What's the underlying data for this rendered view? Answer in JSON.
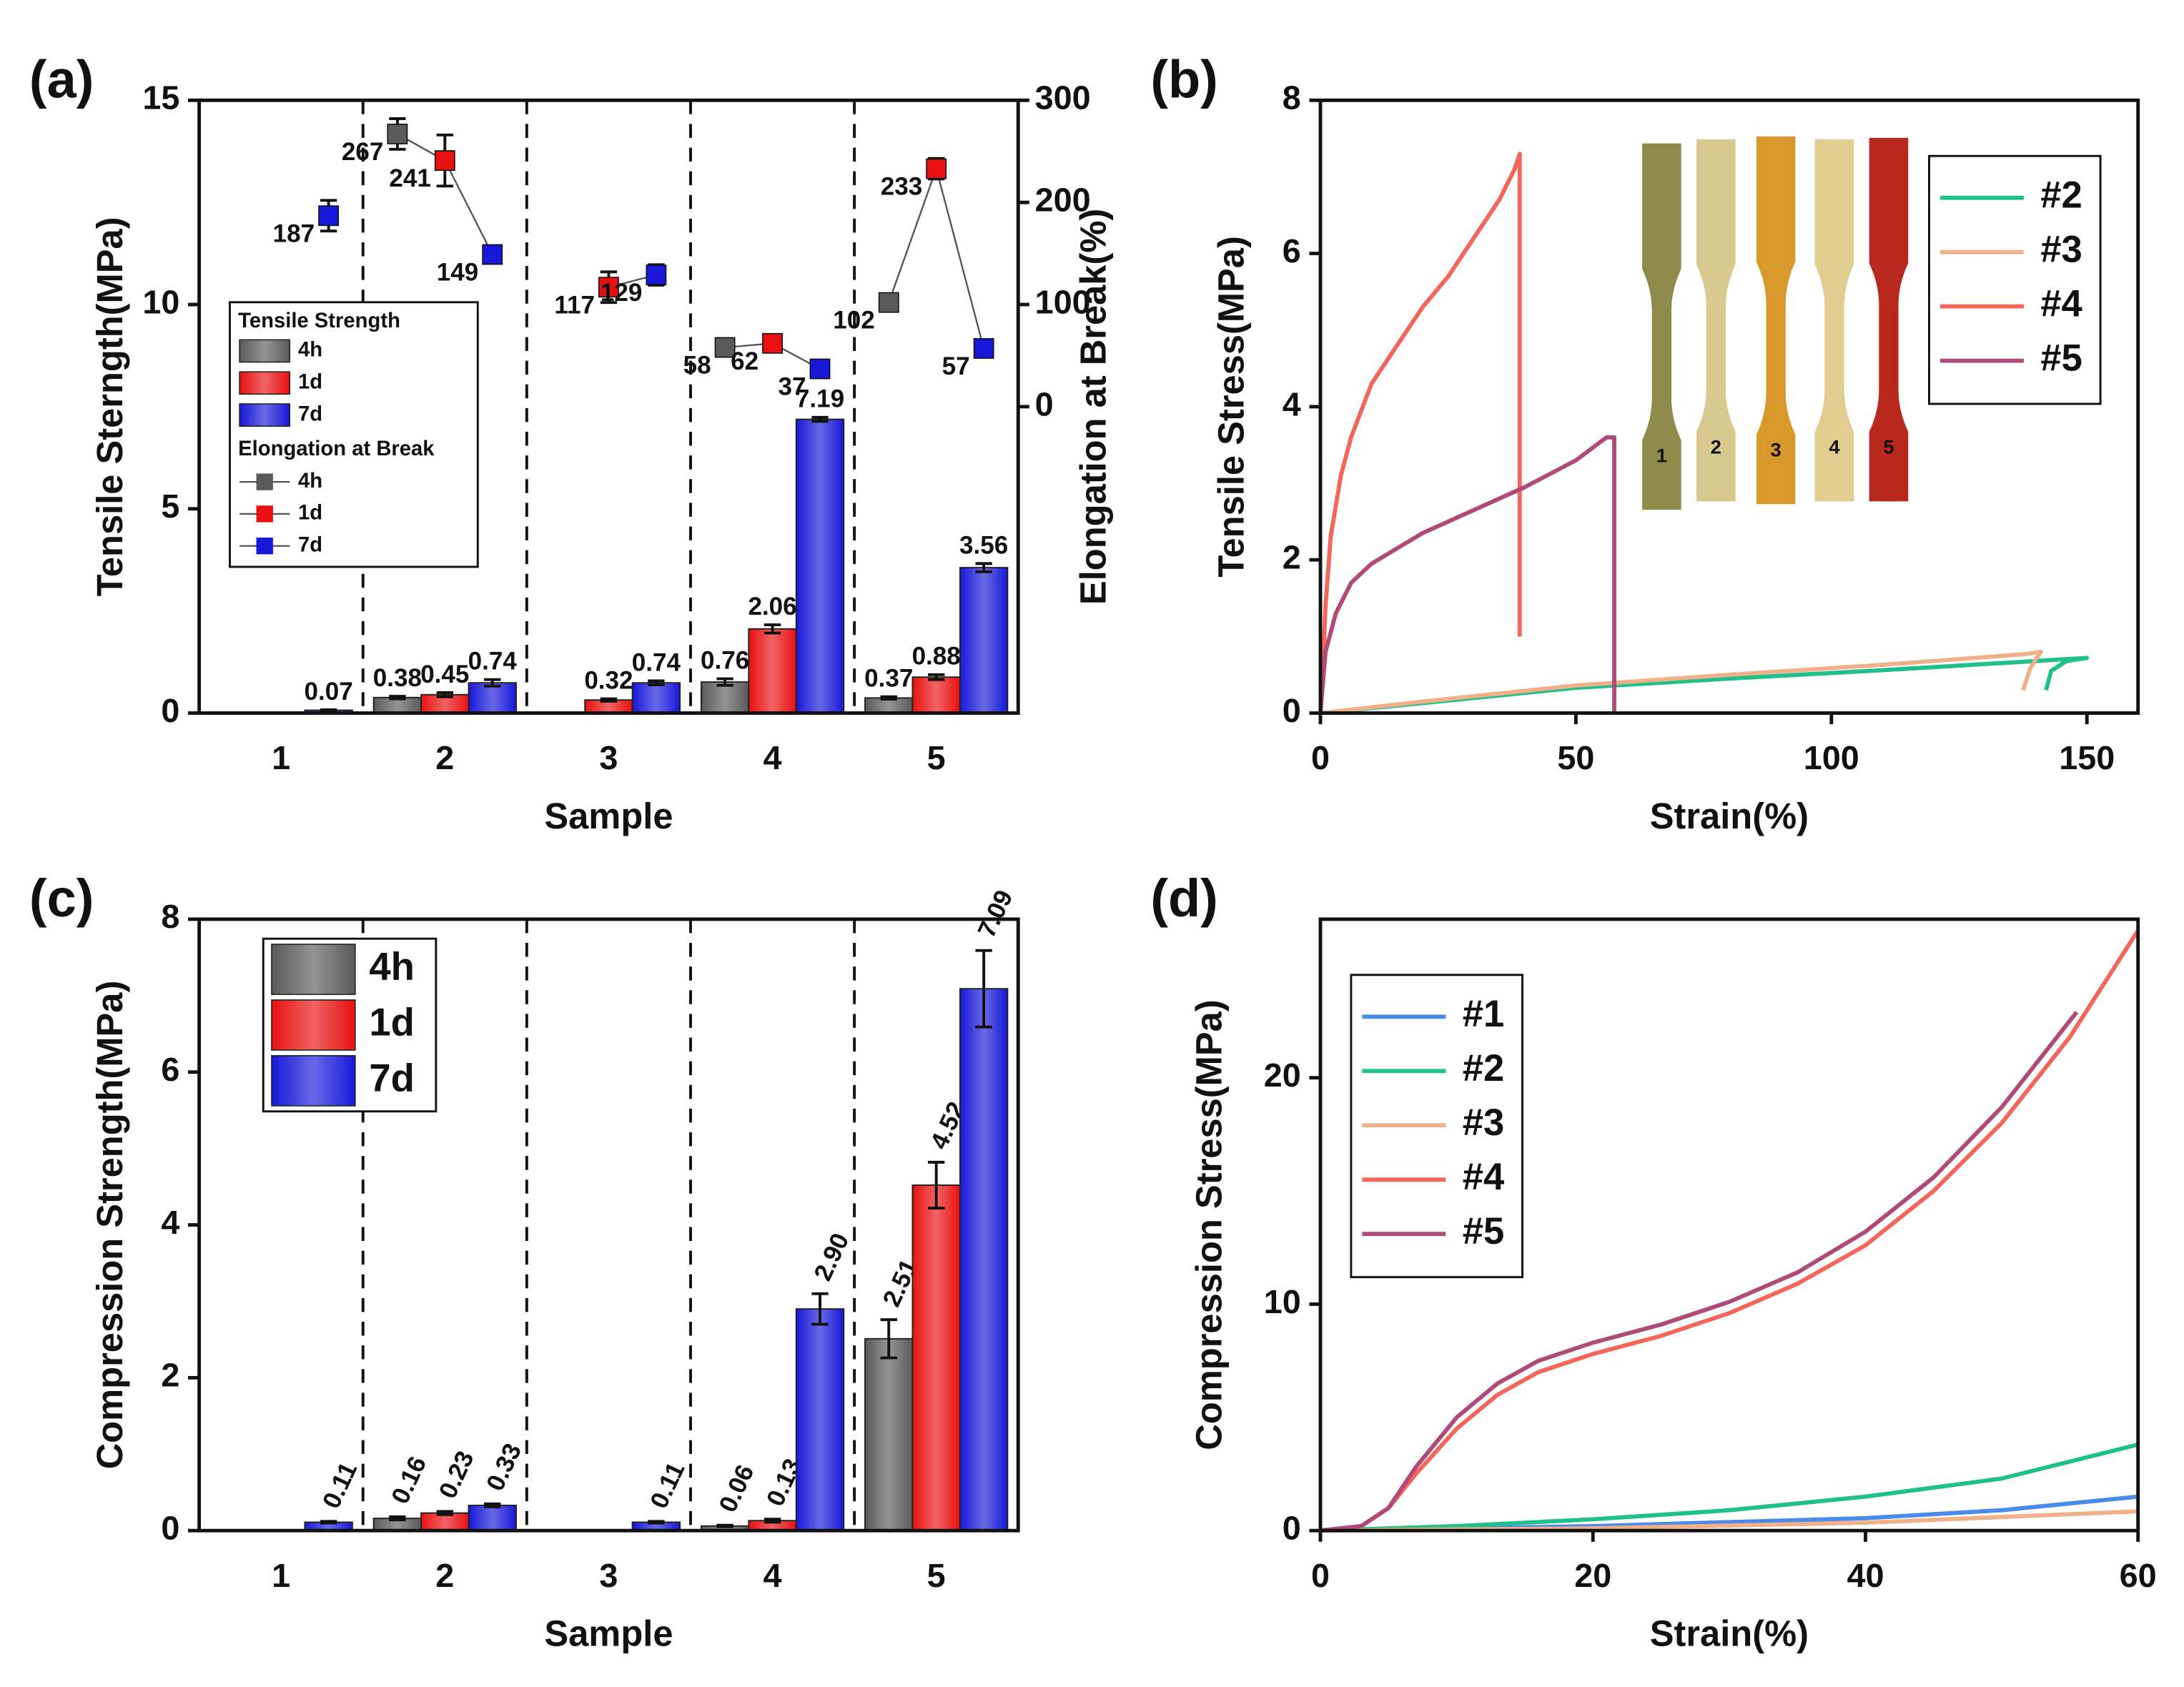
{
  "chart_data": [
    {
      "type": "bar",
      "label": "(a)",
      "xlabel": "Sample",
      "ylabel": "Tensile Sterngth(MPa)",
      "y2label": "Elongation at Break(%)",
      "categories": [
        "1",
        "2",
        "3",
        "4",
        "5"
      ],
      "ylim": [
        0,
        15
      ],
      "yticks": [
        0,
        5,
        10,
        15
      ],
      "y2lim": [
        -300,
        300
      ],
      "y2ticks": [
        0,
        100,
        200,
        300
      ],
      "legend": "center left",
      "bar_legend_title": "Tensile Strength",
      "point_legend_title": "Elongation at Break",
      "series": [
        {
          "name": "4h",
          "color": "#5a5a5a",
          "values": [
            null,
            0.38,
            null,
            0.76,
            0.37
          ],
          "errors": [
            null,
            0.03,
            null,
            0.08,
            0.03
          ]
        },
        {
          "name": "1d",
          "color": "#e81010",
          "values": [
            null,
            0.45,
            0.32,
            2.06,
            0.88
          ],
          "errors": [
            null,
            0.05,
            0.03,
            0.1,
            0.06
          ]
        },
        {
          "name": "7d",
          "color": "#1818d8",
          "values": [
            0.07,
            0.74,
            0.74,
            7.19,
            3.56
          ],
          "errors": [
            0.01,
            0.08,
            0.05,
            0.05,
            0.1
          ]
        },
        {
          "name": "4h",
          "color": "#5a5a5a",
          "axis": "y2",
          "values": [
            null,
            267,
            null,
            58,
            102
          ],
          "errors": [
            null,
            15,
            null,
            5,
            5
          ]
        },
        {
          "name": "1d",
          "color": "#e81010",
          "axis": "y2",
          "values": [
            null,
            241,
            117,
            62,
            233
          ],
          "errors": [
            null,
            25,
            15,
            5,
            10
          ]
        },
        {
          "name": "7d",
          "color": "#1818d8",
          "axis": "y2",
          "values": [
            187,
            149,
            129,
            37,
            57
          ],
          "errors": [
            15,
            5,
            10,
            3,
            3
          ]
        }
      ]
    },
    {
      "type": "line",
      "label": "(b)",
      "xlabel": "Strain(%)",
      "ylabel": "Tensile Stress(MPa)",
      "xlim": [
        0,
        160
      ],
      "xticks": [
        0,
        50,
        100,
        150
      ],
      "ylim": [
        0,
        8
      ],
      "yticks": [
        0,
        2,
        4,
        6,
        8
      ],
      "legend": "upper right",
      "inset_labels": [
        "1",
        "2",
        "3",
        "4",
        "5"
      ],
      "series": [
        {
          "name": "#2",
          "color": "#1fc08a",
          "x": [
            0,
            20,
            50,
            80,
            110,
            140,
            150,
            146,
            143,
            142
          ],
          "values": [
            0,
            0.13,
            0.33,
            0.45,
            0.56,
            0.68,
            0.72,
            0.68,
            0.55,
            0.3
          ]
        },
        {
          "name": "#3",
          "color": "#f0b08a",
          "x": [
            0,
            20,
            50,
            80,
            110,
            138,
            141,
            139,
            137.5
          ],
          "values": [
            0,
            0.15,
            0.36,
            0.5,
            0.63,
            0.77,
            0.8,
            0.6,
            0.3
          ]
        },
        {
          "name": "#4",
          "color": "#f4665a",
          "x": [
            0,
            0.5,
            1,
            2,
            4,
            6,
            10,
            15,
            20,
            25,
            30,
            35,
            38,
            39,
            39
          ],
          "values": [
            0,
            0.6,
            1.4,
            2.3,
            3.1,
            3.6,
            4.3,
            4.8,
            5.3,
            5.7,
            6.2,
            6.7,
            7.1,
            7.3,
            1.0
          ]
        },
        {
          "name": "#5",
          "color": "#b04a78",
          "x": [
            0,
            1,
            3,
            6,
            10,
            15,
            20,
            30,
            40,
            50,
            56,
            57.5,
            57.5
          ],
          "values": [
            0,
            0.8,
            1.3,
            1.7,
            1.95,
            2.15,
            2.35,
            2.65,
            2.95,
            3.3,
            3.6,
            3.6,
            0
          ]
        }
      ]
    },
    {
      "type": "bar",
      "label": "(c)",
      "xlabel": "Sample",
      "ylabel": "Compression Strength(MPa)",
      "categories": [
        "1",
        "2",
        "3",
        "4",
        "5"
      ],
      "ylim": [
        0,
        8
      ],
      "yticks": [
        0,
        2,
        4,
        6,
        8
      ],
      "legend": "upper left",
      "series": [
        {
          "name": "4h",
          "color": "#5a5a5a",
          "values": [
            null,
            0.16,
            null,
            0.06,
            2.51
          ],
          "errors": [
            null,
            0.02,
            null,
            0.01,
            0.25
          ]
        },
        {
          "name": "1d",
          "color": "#e81010",
          "values": [
            null,
            0.23,
            null,
            0.13,
            4.52
          ],
          "errors": [
            null,
            0.02,
            null,
            0.02,
            0.3
          ]
        },
        {
          "name": "7d",
          "color": "#1818d8",
          "values": [
            0.11,
            0.33,
            0.11,
            2.9,
            7.09
          ],
          "value_labels": [
            "0.11",
            "0.33",
            "0.11",
            "2.90",
            "7.09"
          ],
          "errors": [
            0.01,
            0.02,
            0.01,
            0.2,
            0.5
          ]
        }
      ]
    },
    {
      "type": "line",
      "label": "(d)",
      "xlabel": "Strain(%)",
      "ylabel": "Compression Stress(MPa)",
      "xlim": [
        0,
        60
      ],
      "xticks": [
        0,
        20,
        40,
        60
      ],
      "ylim": [
        0,
        27
      ],
      "yticks": [
        0,
        10,
        20
      ],
      "legend": "upper left",
      "series": [
        {
          "name": "#1",
          "color": "#4a8ae8",
          "x": [
            0,
            20,
            40,
            50,
            60
          ],
          "values": [
            0,
            0.2,
            0.55,
            0.9,
            1.5
          ]
        },
        {
          "name": "#2",
          "color": "#1fc08a",
          "x": [
            0,
            10,
            20,
            30,
            40,
            50,
            60
          ],
          "values": [
            0,
            0.2,
            0.5,
            0.9,
            1.5,
            2.3,
            3.8
          ]
        },
        {
          "name": "#3",
          "color": "#f0b08a",
          "x": [
            0,
            20,
            40,
            60
          ],
          "values": [
            0,
            0.1,
            0.35,
            0.85
          ]
        },
        {
          "name": "#4",
          "color": "#f4665a",
          "x": [
            0,
            3,
            5,
            7,
            10,
            13,
            16,
            20,
            25,
            30,
            35,
            40,
            45,
            50,
            55,
            60
          ],
          "values": [
            0,
            0.2,
            1,
            2.5,
            4.5,
            6,
            7,
            7.8,
            8.6,
            9.6,
            10.9,
            12.6,
            15,
            18,
            21.8,
            26.5
          ]
        },
        {
          "name": "#5",
          "color": "#b04a78",
          "x": [
            0,
            3,
            5,
            7,
            10,
            13,
            16,
            20,
            25,
            30,
            35,
            40,
            45,
            50,
            55.5
          ],
          "values": [
            0,
            0.2,
            1,
            2.8,
            5,
            6.5,
            7.5,
            8.3,
            9.1,
            10.1,
            11.4,
            13.2,
            15.6,
            18.7,
            22.9
          ]
        }
      ]
    }
  ]
}
